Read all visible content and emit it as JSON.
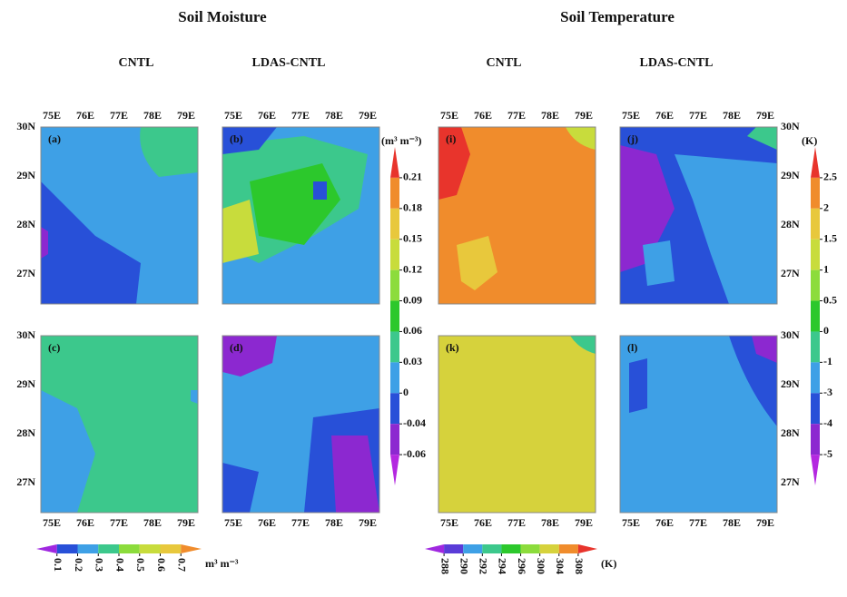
{
  "headings": [
    {
      "title": "Soil Moisture",
      "columns": [
        "CNTL",
        "LDAS-CNTL"
      ]
    },
    {
      "title": "Soil Temperature",
      "columns": [
        "CNTL",
        "LDAS-CNTL"
      ]
    }
  ],
  "panels": [
    "(a)",
    "(b)",
    "(i)",
    "(j)",
    "(c)",
    "(d)",
    "(k)",
    "(l)"
  ],
  "lon_labels": [
    "75E",
    "76E",
    "77E",
    "78E",
    "79E"
  ],
  "lat_labels": [
    "30N",
    "29N",
    "28N",
    "27N"
  ],
  "colorbars": {
    "moisture_diff": {
      "unit": "(m³ m⁻³)",
      "ticks": [
        0.21,
        0.18,
        0.15,
        0.12,
        0.09,
        0.06,
        0.03,
        0,
        -0.04,
        -0.06
      ],
      "colors": [
        "#e8342c",
        "#f08c2c",
        "#e8c83c",
        "#c8dc3c",
        "#8cdc3c",
        "#2cc82c",
        "#3cc88c",
        "#3ea0e6",
        "#2850d8",
        "#8c28d0",
        "#b428e0"
      ]
    },
    "temperature_diff": {
      "unit": "(K)",
      "ticks": [
        2.5,
        2,
        1.5,
        1,
        0.5,
        0,
        -1,
        -3,
        -4,
        -5
      ],
      "colors": [
        "#e8342c",
        "#f08c2c",
        "#e8c83c",
        "#c8dc3c",
        "#8cdc3c",
        "#2cc82c",
        "#3cc88c",
        "#3ea0e6",
        "#2850d8",
        "#8c28d0",
        "#b428e0"
      ]
    },
    "moisture": {
      "unit": "m³ m⁻³",
      "ticks": [
        0.1,
        0.2,
        0.3,
        0.4,
        0.5,
        0.6,
        0.7
      ],
      "colors": [
        "#a028e0",
        "#2850d8",
        "#3ea0e6",
        "#3cc88c",
        "#8cdc3c",
        "#c8dc3c",
        "#e8c83c",
        "#f08c2c"
      ]
    },
    "temperature": {
      "unit": "(K)",
      "ticks": [
        288,
        290,
        292,
        294,
        296,
        300,
        304,
        308
      ],
      "colors": [
        "#a028e0",
        "#5a3cd8",
        "#3ea0e6",
        "#3cc88c",
        "#2cc82c",
        "#8cdc3c",
        "#d6d23c",
        "#f08c2c",
        "#e8342c"
      ]
    }
  }
}
